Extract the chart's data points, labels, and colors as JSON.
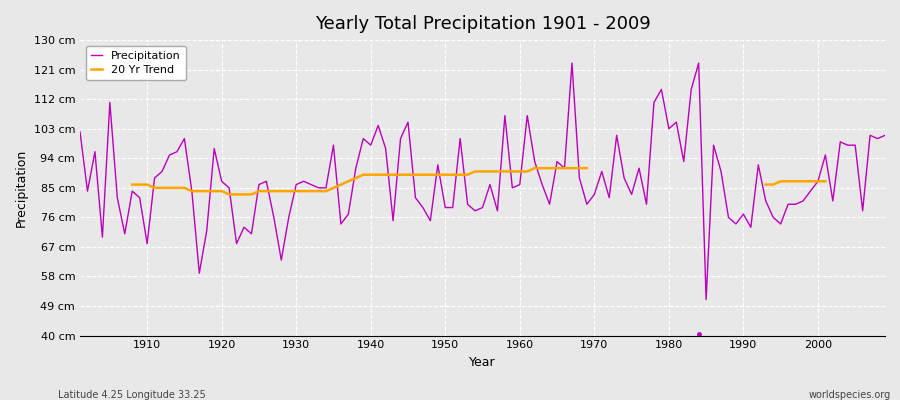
{
  "title": "Yearly Total Precipitation 1901 - 2009",
  "xlabel": "Year",
  "ylabel": "Precipitation",
  "subtitle_left": "Latitude 4.25 Longitude 33.25",
  "subtitle_right": "worldspecies.org",
  "bg_color": "#e8e8e8",
  "plot_bg_color": "#e8e8e8",
  "line_color": "#bb00bb",
  "trend_color": "#ffa500",
  "ylim": [
    40,
    130
  ],
  "yticks": [
    40,
    49,
    58,
    67,
    76,
    85,
    94,
    103,
    112,
    121,
    130
  ],
  "ytick_labels": [
    "40 cm",
    "49 cm",
    "58 cm",
    "67 cm",
    "76 cm",
    "85 cm",
    "94 cm",
    "103 cm",
    "112 cm",
    "121 cm",
    "130 cm"
  ],
  "years": [
    1901,
    1902,
    1903,
    1904,
    1905,
    1906,
    1907,
    1908,
    1909,
    1910,
    1911,
    1912,
    1913,
    1914,
    1915,
    1916,
    1917,
    1918,
    1919,
    1920,
    1921,
    1922,
    1923,
    1924,
    1925,
    1926,
    1927,
    1928,
    1929,
    1930,
    1931,
    1932,
    1933,
    1934,
    1935,
    1936,
    1937,
    1938,
    1939,
    1940,
    1941,
    1942,
    1943,
    1944,
    1945,
    1946,
    1947,
    1948,
    1949,
    1950,
    1951,
    1952,
    1953,
    1954,
    1955,
    1956,
    1957,
    1958,
    1959,
    1960,
    1961,
    1962,
    1963,
    1964,
    1965,
    1966,
    1967,
    1968,
    1969,
    1970,
    1971,
    1972,
    1973,
    1974,
    1975,
    1976,
    1977,
    1978,
    1979,
    1980,
    1981,
    1982,
    1983,
    1984,
    1985,
    1986,
    1987,
    1988,
    1989,
    1990,
    1991,
    1992,
    1993,
    1994,
    1995,
    1996,
    1997,
    1998,
    1999,
    2000,
    2001,
    2002,
    2003,
    2004,
    2005,
    2006,
    2007,
    2008,
    2009
  ],
  "precip": [
    102,
    84,
    96,
    70,
    111,
    82,
    71,
    84,
    82,
    68,
    88,
    90,
    95,
    96,
    100,
    84,
    59,
    72,
    97,
    87,
    85,
    68,
    73,
    71,
    86,
    87,
    76,
    63,
    76,
    86,
    87,
    86,
    85,
    85,
    98,
    74,
    77,
    91,
    100,
    98,
    104,
    97,
    75,
    100,
    105,
    82,
    79,
    75,
    92,
    79,
    79,
    100,
    80,
    78,
    79,
    86,
    78,
    107,
    85,
    86,
    107,
    93,
    86,
    80,
    93,
    91,
    123,
    88,
    80,
    83,
    90,
    82,
    101,
    88,
    83,
    91,
    80,
    111,
    115,
    103,
    105,
    93,
    115,
    123,
    51,
    98,
    90,
    76,
    74,
    77,
    73,
    92,
    81,
    76,
    74,
    80,
    80,
    81,
    84,
    87,
    95,
    81,
    99,
    98,
    98,
    78,
    101,
    100,
    101
  ],
  "trend_seg1_years": [
    1908,
    1909,
    1910,
    1911,
    1912,
    1913,
    1914,
    1915,
    1916,
    1917,
    1918,
    1919,
    1920,
    1921,
    1922,
    1923,
    1924,
    1925,
    1926,
    1927,
    1928,
    1929,
    1930,
    1931,
    1932,
    1933,
    1934,
    1935,
    1936,
    1937,
    1938,
    1939,
    1940,
    1941,
    1942,
    1943,
    1944,
    1945,
    1946,
    1947,
    1948,
    1949,
    1950,
    1951,
    1952,
    1953,
    1954,
    1955,
    1956,
    1957,
    1958,
    1959,
    1960,
    1961,
    1962,
    1963,
    1964,
    1965,
    1966,
    1967,
    1968,
    1969
  ],
  "trend_seg1_vals": [
    86,
    86,
    86,
    85,
    85,
    85,
    85,
    85,
    84,
    84,
    84,
    84,
    84,
    83,
    83,
    83,
    83,
    84,
    84,
    84,
    84,
    84,
    84,
    84,
    84,
    84,
    84,
    85,
    86,
    87,
    88,
    89,
    89,
    89,
    89,
    89,
    89,
    89,
    89,
    89,
    89,
    89,
    89,
    89,
    89,
    89,
    90,
    90,
    90,
    90,
    90,
    90,
    90,
    90,
    91,
    91,
    91,
    91,
    91,
    91,
    91,
    91
  ],
  "trend_seg2_years": [
    1961,
    1962,
    1963
  ],
  "trend_seg2_vals": [
    90,
    91,
    91
  ],
  "trend_seg3_years": [
    1993,
    1994,
    1995,
    1996,
    1997,
    1998,
    1999,
    2000,
    2001
  ],
  "trend_seg3_vals": [
    86,
    86,
    87,
    87,
    87,
    87,
    87,
    87,
    87
  ],
  "dot_year": 1984,
  "dot_val": 40.5
}
